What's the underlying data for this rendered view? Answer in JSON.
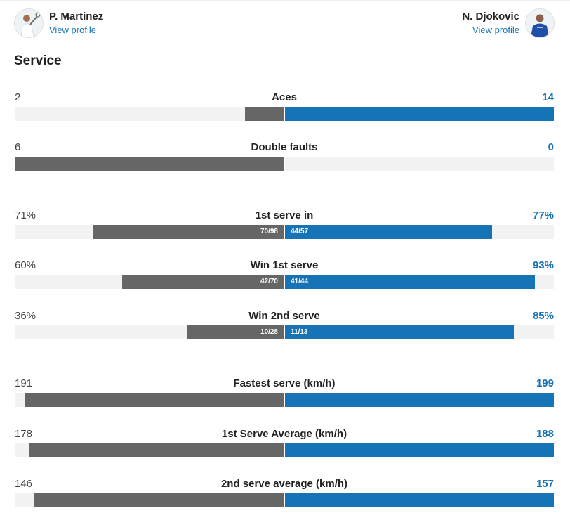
{
  "players": {
    "left": {
      "name": "P. Martinez",
      "link": "View profile"
    },
    "right": {
      "name": "N. Djokovic",
      "link": "View profile"
    }
  },
  "section": {
    "title": "Service"
  },
  "colors": {
    "left_bar": "#666666",
    "right_bar": "#1674b6",
    "track": "#f2f2f2"
  },
  "stats": [
    {
      "label": "Aces",
      "left": "2",
      "right": "14",
      "left_value": 2,
      "right_value": 14,
      "left_frac": "",
      "right_frac": ""
    },
    {
      "label": "Double faults",
      "left": "6",
      "right": "0",
      "left_value": 6,
      "right_value": 0,
      "left_frac": "",
      "right_frac": ""
    },
    {
      "label": "1st serve in",
      "left": "71%",
      "right": "77%",
      "left_value": 71,
      "right_value": 77,
      "left_frac": "70/98",
      "right_frac": "44/57"
    },
    {
      "label": "Win 1st serve",
      "left": "60%",
      "right": "93%",
      "left_value": 60,
      "right_value": 93,
      "left_frac": "42/70",
      "right_frac": "41/44"
    },
    {
      "label": "Win 2nd serve",
      "left": "36%",
      "right": "85%",
      "left_value": 36,
      "right_value": 85,
      "left_frac": "10/28",
      "right_frac": "11/13"
    },
    {
      "label": "Fastest serve (km/h)",
      "left": "191",
      "right": "199",
      "left_value": 191,
      "right_value": 199,
      "left_frac": "",
      "right_frac": ""
    },
    {
      "label": "1st Serve Average (km/h)",
      "left": "178",
      "right": "188",
      "left_value": 178,
      "right_value": 188,
      "left_frac": "",
      "right_frac": ""
    },
    {
      "label": "2nd serve average (km/h)",
      "left": "146",
      "right": "157",
      "left_value": 146,
      "right_value": 157,
      "left_frac": "",
      "right_frac": ""
    }
  ]
}
